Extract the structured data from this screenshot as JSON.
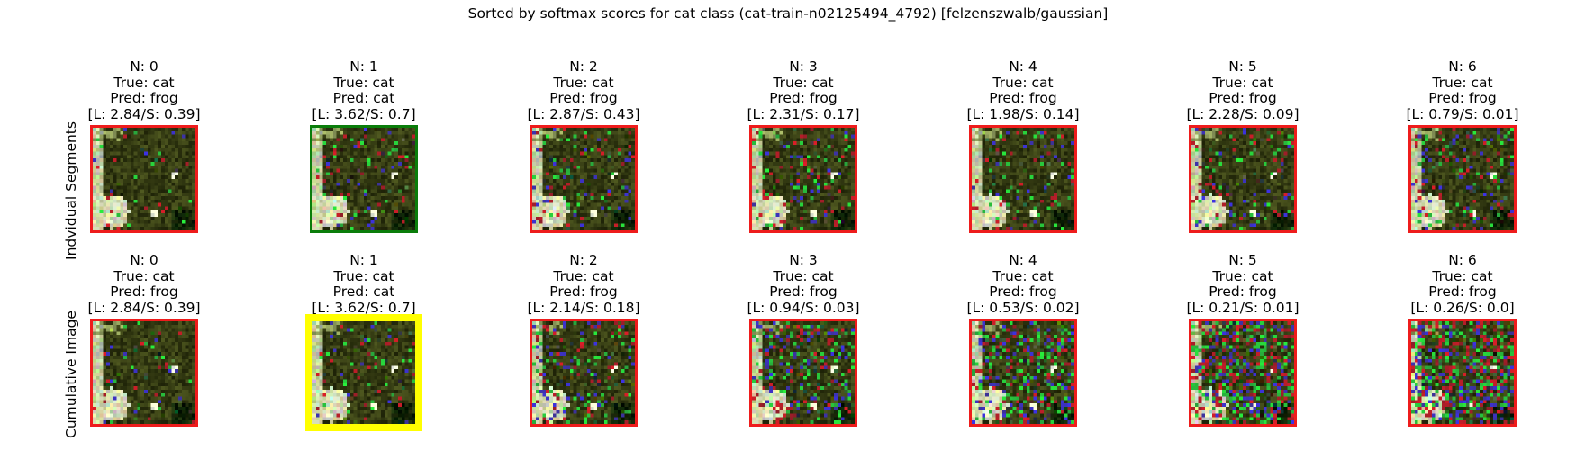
{
  "figure": {
    "suptitle": "Sorted by softmax scores for cat class (cat-train-n02125494_4792) [felzenszwalb/gaussian]"
  },
  "chart_data": {
    "type": "image-grid",
    "title": "Sorted by softmax scores for cat class (cat-train-n02125494_4792) [felzenszwalb/gaussian]",
    "true_label": "cat",
    "rows": [
      {
        "label": "Indvidual Segments",
        "cells": [
          {
            "n": "N: 0",
            "true": "True: cat",
            "pred": "Pred: frog",
            "scores": "[L: 2.84/S: 0.39]",
            "border": "red",
            "noise": 0.05
          },
          {
            "n": "N: 1",
            "true": "True: cat",
            "pred": "Pred: cat",
            "scores": "[L: 3.62/S: 0.7]",
            "border": "green",
            "noise": 0.12
          },
          {
            "n": "N: 2",
            "true": "True: cat",
            "pred": "Pred: frog",
            "scores": "[L: 2.87/S: 0.43]",
            "border": "red",
            "noise": 0.15
          },
          {
            "n": "N: 3",
            "true": "True: cat",
            "pred": "Pred: frog",
            "scores": "[L: 2.31/S: 0.17]",
            "border": "red",
            "noise": 0.18
          },
          {
            "n": "N: 4",
            "true": "True: cat",
            "pred": "Pred: frog",
            "scores": "[L: 1.98/S: 0.14]",
            "border": "red",
            "noise": 0.12
          },
          {
            "n": "N: 5",
            "true": "True: cat",
            "pred": "Pred: frog",
            "scores": "[L: 2.28/S: 0.09]",
            "border": "red",
            "noise": 0.18
          },
          {
            "n": "N: 6",
            "true": "True: cat",
            "pred": "Pred: frog",
            "scores": "[L: 0.79/S: 0.01]",
            "border": "red",
            "noise": 0.2
          }
        ]
      },
      {
        "label": "Cumulative Image",
        "cells": [
          {
            "n": "N: 0",
            "true": "True: cat",
            "pred": "Pred: frog",
            "scores": "[L: 2.84/S: 0.39]",
            "border": "red",
            "noise": 0.05
          },
          {
            "n": "N: 1",
            "true": "True: cat",
            "pred": "Pred: cat",
            "scores": "[L: 3.62/S: 0.7]",
            "border": "yellow",
            "noise": 0.12
          },
          {
            "n": "N: 2",
            "true": "True: cat",
            "pred": "Pred: frog",
            "scores": "[L: 2.14/S: 0.18]",
            "border": "red",
            "noise": 0.25
          },
          {
            "n": "N: 3",
            "true": "True: cat",
            "pred": "Pred: frog",
            "scores": "[L: 0.94/S: 0.03]",
            "border": "red",
            "noise": 0.35
          },
          {
            "n": "N: 4",
            "true": "True: cat",
            "pred": "Pred: frog",
            "scores": "[L: 0.53/S: 0.02]",
            "border": "red",
            "noise": 0.45
          },
          {
            "n": "N: 5",
            "true": "True: cat",
            "pred": "Pred: frog",
            "scores": "[L: 0.21/S: 0.01]",
            "border": "red",
            "noise": 0.55
          },
          {
            "n": "N: 6",
            "true": "True: cat",
            "pred": "Pred: frog",
            "scores": "[L: 0.26/S: 0.0]",
            "border": "red",
            "noise": 0.65
          }
        ]
      }
    ]
  },
  "colors": {
    "red": "#ee1c1c",
    "green": "#0a7d0a",
    "yellow": "#ffff00"
  }
}
